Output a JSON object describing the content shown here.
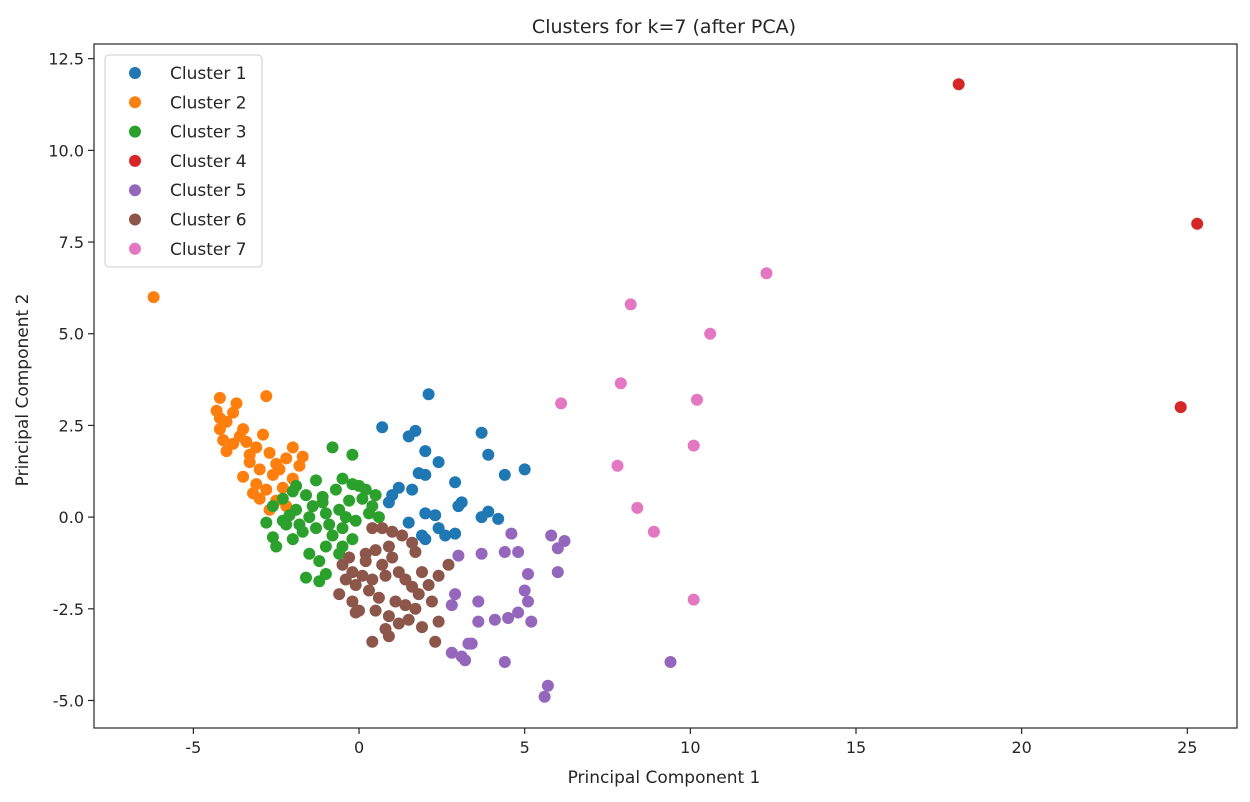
{
  "chart_data": {
    "type": "scatter",
    "title": "Clusters for k=7 (after PCA)",
    "xlabel": "Principal Component 1",
    "ylabel": "Principal Component 2",
    "xlim": [
      -8,
      26.5
    ],
    "ylim": [
      -5.75,
      12.9
    ],
    "xticks": [
      -5,
      0,
      5,
      10,
      15,
      20,
      25
    ],
    "yticks": [
      -5.0,
      -2.5,
      0.0,
      2.5,
      5.0,
      7.5,
      10.0,
      12.5
    ],
    "xtick_labels": [
      "-5",
      "0",
      "5",
      "10",
      "15",
      "20",
      "25"
    ],
    "ytick_labels": [
      "-5.0",
      "-2.5",
      "0.0",
      "2.5",
      "5.0",
      "7.5",
      "10.0",
      "12.5"
    ],
    "grid": false,
    "legend_position": "top-left",
    "series": [
      {
        "name": "Cluster 1",
        "color": "#1f77b4",
        "points": [
          [
            2.1,
            3.35
          ],
          [
            0.7,
            2.45
          ],
          [
            1.5,
            2.2
          ],
          [
            1.7,
            2.35
          ],
          [
            3.7,
            2.3
          ],
          [
            2.0,
            1.8
          ],
          [
            3.9,
            1.7
          ],
          [
            2.4,
            1.5
          ],
          [
            1.8,
            1.2
          ],
          [
            2.0,
            1.15
          ],
          [
            5.0,
            1.3
          ],
          [
            4.4,
            1.15
          ],
          [
            2.9,
            0.95
          ],
          [
            1.2,
            0.8
          ],
          [
            1.6,
            0.75
          ],
          [
            0.9,
            0.4
          ],
          [
            3.1,
            0.4
          ],
          [
            3.0,
            0.3
          ],
          [
            2.0,
            0.1
          ],
          [
            2.3,
            0.05
          ],
          [
            3.7,
            0.0
          ],
          [
            3.9,
            0.15
          ],
          [
            4.2,
            -0.05
          ],
          [
            1.5,
            -0.15
          ],
          [
            2.4,
            -0.3
          ],
          [
            2.9,
            -0.45
          ],
          [
            2.0,
            -0.6
          ],
          [
            1.9,
            -0.5
          ],
          [
            1.0,
            0.6
          ],
          [
            2.6,
            -0.5
          ]
        ]
      },
      {
        "name": "Cluster 2",
        "color": "#ff7f0e",
        "points": [
          [
            -6.2,
            6.0
          ],
          [
            -4.2,
            3.25
          ],
          [
            -2.8,
            3.3
          ],
          [
            -3.7,
            3.1
          ],
          [
            -4.3,
            2.9
          ],
          [
            -3.8,
            2.85
          ],
          [
            -4.0,
            2.6
          ],
          [
            -4.2,
            2.4
          ],
          [
            -3.6,
            2.2
          ],
          [
            -4.1,
            2.1
          ],
          [
            -3.8,
            2.0
          ],
          [
            -3.4,
            2.05
          ],
          [
            -3.1,
            1.9
          ],
          [
            -2.9,
            2.25
          ],
          [
            -4.0,
            1.8
          ],
          [
            -3.3,
            1.7
          ],
          [
            -2.7,
            1.75
          ],
          [
            -2.2,
            1.6
          ],
          [
            -1.7,
            1.65
          ],
          [
            -1.8,
            1.4
          ],
          [
            -2.5,
            1.45
          ],
          [
            -3.0,
            1.3
          ],
          [
            -3.5,
            1.1
          ],
          [
            -2.6,
            1.15
          ],
          [
            -2.0,
            1.05
          ],
          [
            -3.1,
            0.9
          ],
          [
            -2.8,
            0.75
          ],
          [
            -2.3,
            0.8
          ],
          [
            -3.0,
            0.5
          ],
          [
            -2.5,
            0.45
          ],
          [
            -2.7,
            0.2
          ],
          [
            -3.3,
            1.5
          ],
          [
            -2.0,
            1.9
          ],
          [
            -4.2,
            2.7
          ],
          [
            -3.5,
            2.4
          ],
          [
            -2.4,
            1.3
          ],
          [
            -3.2,
            0.65
          ],
          [
            -2.2,
            0.3
          ]
        ]
      },
      {
        "name": "Cluster 3",
        "color": "#2ca02c",
        "points": [
          [
            -0.8,
            1.9
          ],
          [
            -0.2,
            1.7
          ],
          [
            -1.3,
            1.0
          ],
          [
            -0.5,
            1.05
          ],
          [
            -0.2,
            0.9
          ],
          [
            0.0,
            0.85
          ],
          [
            0.2,
            0.75
          ],
          [
            -0.7,
            0.75
          ],
          [
            -1.1,
            0.55
          ],
          [
            -1.6,
            0.6
          ],
          [
            -2.0,
            0.7
          ],
          [
            -2.3,
            0.5
          ],
          [
            -2.6,
            0.3
          ],
          [
            -2.8,
            -0.15
          ],
          [
            -2.2,
            -0.2
          ],
          [
            -1.9,
            0.2
          ],
          [
            -1.4,
            0.3
          ],
          [
            -1.0,
            0.1
          ],
          [
            -0.6,
            0.2
          ],
          [
            -0.3,
            0.45
          ],
          [
            0.1,
            0.5
          ],
          [
            0.4,
            0.3
          ],
          [
            0.6,
            0.0
          ],
          [
            -0.1,
            -0.1
          ],
          [
            -0.5,
            -0.3
          ],
          [
            -0.9,
            -0.2
          ],
          [
            -1.3,
            -0.3
          ],
          [
            -1.7,
            -0.4
          ],
          [
            -2.0,
            -0.6
          ],
          [
            -2.6,
            -0.55
          ],
          [
            -2.5,
            -0.8
          ],
          [
            -1.5,
            -1.0
          ],
          [
            -1.0,
            -0.8
          ],
          [
            -0.5,
            -0.8
          ],
          [
            -1.6,
            -1.65
          ],
          [
            -1.2,
            -1.75
          ],
          [
            -1.0,
            -1.55
          ],
          [
            -1.8,
            -0.2
          ],
          [
            -1.1,
            0.4
          ],
          [
            -0.4,
            0.0
          ],
          [
            0.3,
            0.1
          ],
          [
            -2.3,
            -0.1
          ],
          [
            -1.5,
            0.0
          ],
          [
            -0.8,
            -0.5
          ],
          [
            0.5,
            0.6
          ],
          [
            -1.9,
            0.85
          ],
          [
            -1.2,
            -1.2
          ],
          [
            -0.6,
            -1.0
          ],
          [
            -2.1,
            0.05
          ],
          [
            -0.2,
            -0.6
          ]
        ]
      },
      {
        "name": "Cluster 4",
        "color": "#d62728",
        "points": [
          [
            18.1,
            11.8
          ],
          [
            25.3,
            8.0
          ],
          [
            24.8,
            3.0
          ]
        ]
      },
      {
        "name": "Cluster 5",
        "color": "#9467bd",
        "points": [
          [
            9.4,
            -3.95
          ],
          [
            5.7,
            -4.6
          ],
          [
            5.6,
            -4.9
          ],
          [
            3.2,
            -3.9
          ],
          [
            3.1,
            -3.8
          ],
          [
            2.8,
            -3.7
          ],
          [
            3.4,
            -3.45
          ],
          [
            3.3,
            -3.45
          ],
          [
            4.4,
            -3.95
          ],
          [
            4.1,
            -2.8
          ],
          [
            4.5,
            -2.75
          ],
          [
            5.2,
            -2.85
          ],
          [
            3.6,
            -2.85
          ],
          [
            4.8,
            -2.6
          ],
          [
            5.0,
            -2.0
          ],
          [
            5.1,
            -2.3
          ],
          [
            2.8,
            -2.4
          ],
          [
            2.9,
            -2.1
          ],
          [
            3.6,
            -2.3
          ],
          [
            5.1,
            -1.55
          ],
          [
            6.0,
            -1.5
          ],
          [
            3.0,
            -1.05
          ],
          [
            3.7,
            -1.0
          ],
          [
            4.4,
            -0.95
          ],
          [
            4.8,
            -0.95
          ],
          [
            4.6,
            -0.45
          ],
          [
            5.8,
            -0.5
          ],
          [
            6.0,
            -0.85
          ],
          [
            6.2,
            -0.65
          ]
        ]
      },
      {
        "name": "Cluster 6",
        "color": "#8c564b",
        "points": [
          [
            0.4,
            -0.3
          ],
          [
            0.7,
            -0.3
          ],
          [
            1.0,
            -0.4
          ],
          [
            1.3,
            -0.5
          ],
          [
            1.6,
            -0.7
          ],
          [
            1.7,
            -0.95
          ],
          [
            0.9,
            -0.8
          ],
          [
            0.5,
            -0.9
          ],
          [
            0.2,
            -1.0
          ],
          [
            -0.3,
            -1.1
          ],
          [
            -0.5,
            -1.3
          ],
          [
            -0.2,
            -1.5
          ],
          [
            0.1,
            -1.6
          ],
          [
            0.4,
            -1.7
          ],
          [
            0.8,
            -1.6
          ],
          [
            1.2,
            -1.5
          ],
          [
            1.4,
            -1.7
          ],
          [
            1.6,
            -1.9
          ],
          [
            1.8,
            -2.1
          ],
          [
            2.1,
            -1.85
          ],
          [
            2.4,
            -1.6
          ],
          [
            2.7,
            -1.3
          ],
          [
            -0.4,
            -1.7
          ],
          [
            -0.1,
            -1.85
          ],
          [
            0.3,
            -2.0
          ],
          [
            0.6,
            -2.2
          ],
          [
            1.1,
            -2.3
          ],
          [
            1.4,
            -2.4
          ],
          [
            1.7,
            -2.5
          ],
          [
            -0.6,
            -2.1
          ],
          [
            -0.2,
            -2.3
          ],
          [
            0.0,
            -2.55
          ],
          [
            0.5,
            -2.55
          ],
          [
            0.9,
            -2.7
          ],
          [
            1.2,
            -2.9
          ],
          [
            1.5,
            -2.8
          ],
          [
            1.9,
            -3.0
          ],
          [
            2.4,
            -2.85
          ],
          [
            0.8,
            -3.05
          ],
          [
            0.9,
            -3.25
          ],
          [
            0.4,
            -3.4
          ],
          [
            2.3,
            -3.4
          ],
          [
            -0.1,
            -2.6
          ],
          [
            0.7,
            -1.3
          ],
          [
            1.0,
            -1.1
          ],
          [
            1.9,
            -1.5
          ],
          [
            2.2,
            -2.3
          ],
          [
            0.2,
            -1.2
          ]
        ]
      },
      {
        "name": "Cluster 7",
        "color": "#e377c2",
        "points": [
          [
            12.3,
            6.65
          ],
          [
            8.2,
            5.8
          ],
          [
            10.6,
            5.0
          ],
          [
            7.9,
            3.65
          ],
          [
            10.2,
            3.2
          ],
          [
            6.1,
            3.1
          ],
          [
            10.1,
            1.95
          ],
          [
            7.8,
            1.4
          ],
          [
            8.4,
            0.25
          ],
          [
            8.9,
            -0.4
          ],
          [
            10.1,
            -2.25
          ]
        ]
      }
    ]
  }
}
